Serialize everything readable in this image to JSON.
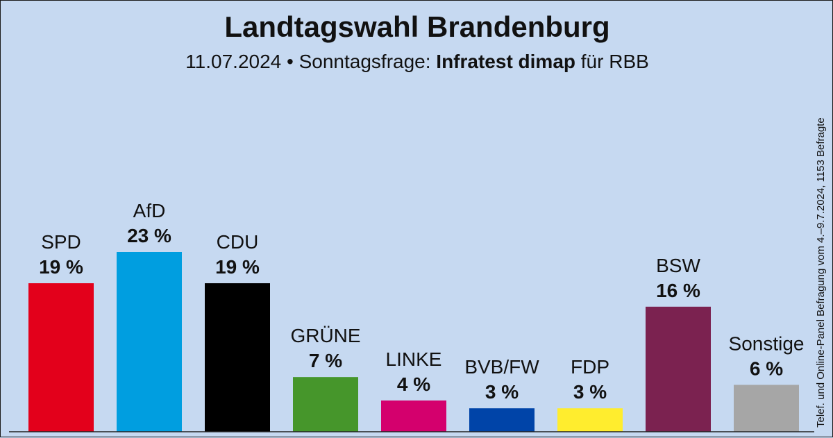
{
  "header": {
    "title": "Landtagswahl Brandenburg",
    "subtitle_prefix": "11.07.2024 • Sonntagsfrage:",
    "institute": "Infratest dimap",
    "subtitle_suffix": "für RBB"
  },
  "side_note": "Telef. und Online-Panel Befragung vom 4.–9.7.2024, 1153 Befragte",
  "chart_data": {
    "type": "bar",
    "title": "Landtagswahl Brandenburg",
    "categories": [
      "SPD",
      "AfD",
      "CDU",
      "GRÜNE",
      "LINKE",
      "BVB/FW",
      "FDP",
      "BSW",
      "Sonstige"
    ],
    "values": [
      19,
      23,
      19,
      7,
      4,
      3,
      3,
      16,
      6
    ],
    "value_labels": [
      "19 %",
      "23 %",
      "19 %",
      "7 %",
      "4 %",
      "3 %",
      "3 %",
      "16 %",
      "6 %"
    ],
    "colors": [
      "#e3001b",
      "#009ee0",
      "#000000",
      "#46962b",
      "#d4006d",
      "#0044a8",
      "#ffed2e",
      "#7b2250",
      "#a6a6a6"
    ],
    "unit": "%",
    "grid": false,
    "legend": "none",
    "ylim": [
      0,
      23
    ]
  }
}
